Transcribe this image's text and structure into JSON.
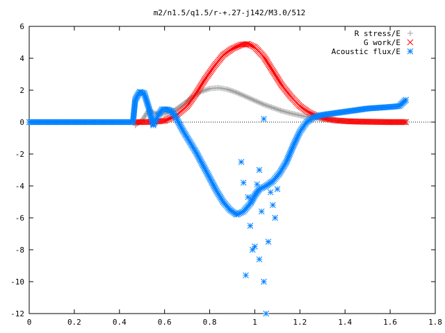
{
  "chart_data": {
    "type": "scatter",
    "title": "m2/n1.5/q1.5/r-+.27-j142/M3.0/512",
    "xlabel": "",
    "ylabel": "",
    "xlim": [
      0,
      1.8
    ],
    "ylim": [
      -12,
      6
    ],
    "xticks": [
      0,
      0.2,
      0.4,
      0.6,
      0.8,
      1,
      1.2,
      1.4,
      1.6,
      1.8
    ],
    "xtick_labels": [
      "0",
      "0.2",
      "0.4",
      "0.6",
      "0.8",
      "1",
      "1.2",
      "1.4",
      "1.6",
      "1.8"
    ],
    "yticks": [
      -12,
      -10,
      -8,
      -6,
      -4,
      -2,
      0,
      2,
      4,
      6
    ],
    "ytick_labels": [
      "-12",
      "-10",
      "-8",
      "-6",
      "-4",
      "-2",
      "0",
      "2",
      "4",
      "6"
    ],
    "grid": false,
    "legend_position": "top-right",
    "series": [
      {
        "name": "R stress/E",
        "marker": "plus",
        "color": "#a0a0a0",
        "x": [
          0.47,
          0.5,
          0.53,
          0.56,
          0.6,
          0.64,
          0.68,
          0.72,
          0.76,
          0.8,
          0.84,
          0.88,
          0.92,
          0.96,
          1.0,
          1.04,
          1.08,
          1.12,
          1.16,
          1.2,
          1.24,
          1.28,
          1.32,
          1.36,
          1.4,
          1.45,
          1.5,
          1.55,
          1.6,
          1.67
        ],
        "y": [
          -0.2,
          0.1,
          0.75,
          0.55,
          0.5,
          0.7,
          1.1,
          1.55,
          1.9,
          2.1,
          2.15,
          2.05,
          1.85,
          1.6,
          1.35,
          1.1,
          0.9,
          0.7,
          0.55,
          0.42,
          0.3,
          0.22,
          0.16,
          0.12,
          0.08,
          0.06,
          0.04,
          0.03,
          0.02,
          0.02
        ]
      },
      {
        "name": "G work/E",
        "marker": "cross",
        "color": "#ff0000",
        "x": [
          0.47,
          0.5,
          0.55,
          0.6,
          0.65,
          0.7,
          0.74,
          0.78,
          0.82,
          0.86,
          0.9,
          0.94,
          0.97,
          1.0,
          1.04,
          1.08,
          1.12,
          1.16,
          1.2,
          1.24,
          1.28,
          1.32,
          1.36,
          1.4,
          1.45,
          1.5,
          1.55,
          1.6,
          1.67
        ],
        "y": [
          0.0,
          0.0,
          0.02,
          0.08,
          0.4,
          1.0,
          1.8,
          2.7,
          3.5,
          4.2,
          4.6,
          4.85,
          4.9,
          4.7,
          4.1,
          3.2,
          2.3,
          1.6,
          1.0,
          0.6,
          0.35,
          0.2,
          0.1,
          0.06,
          0.03,
          0.02,
          0.01,
          0.0,
          0.0
        ]
      },
      {
        "name": "Acoustic flux/E",
        "marker": "star",
        "color": "#0080ff",
        "x": [
          0.0,
          0.1,
          0.2,
          0.3,
          0.4,
          0.46,
          0.47,
          0.49,
          0.51,
          0.53,
          0.55,
          0.57,
          0.59,
          0.61,
          0.63,
          0.65,
          0.68,
          0.71,
          0.74,
          0.77,
          0.8,
          0.83,
          0.86,
          0.89,
          0.92,
          0.95,
          0.98,
          1.0,
          1.02,
          1.05,
          1.08,
          1.11,
          1.14,
          1.17,
          1.2,
          1.23,
          1.26,
          1.3,
          1.35,
          1.4,
          1.45,
          1.5,
          1.55,
          1.6,
          1.64,
          1.67,
          0.94,
          0.95,
          0.97,
          0.98,
          1.0,
          1.01,
          1.02,
          1.03,
          1.04,
          1.05,
          1.06,
          1.07,
          1.08,
          1.09,
          1.1,
          0.96,
          0.99,
          1.02,
          1.04
        ],
        "y": [
          0.0,
          0.0,
          0.0,
          0.0,
          0.0,
          0.0,
          1.4,
          1.9,
          1.8,
          0.9,
          -0.2,
          0.4,
          0.8,
          0.8,
          0.7,
          0.3,
          -0.5,
          -1.2,
          -1.9,
          -2.7,
          -3.5,
          -4.3,
          -5.0,
          -5.5,
          -5.8,
          -5.6,
          -5.1,
          -4.6,
          -4.2,
          -4.0,
          -3.7,
          -3.2,
          -2.5,
          -1.5,
          -0.6,
          0.0,
          0.3,
          0.45,
          0.55,
          0.65,
          0.75,
          0.85,
          0.9,
          0.95,
          1.0,
          1.4,
          -2.5,
          -3.8,
          -4.7,
          -6.5,
          -7.8,
          -3.9,
          -8.6,
          -5.6,
          -10.0,
          -12.0,
          -7.5,
          -4.4,
          -5.2,
          -6.0,
          -4.2,
          -9.6,
          -8.0,
          -3.0,
          0.2
        ]
      }
    ]
  }
}
